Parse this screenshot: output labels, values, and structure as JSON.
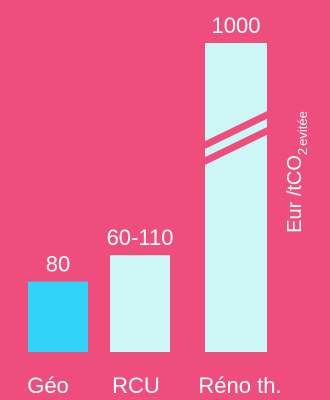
{
  "chart_data": {
    "type": "bar",
    "categories": [
      "Géo",
      "RCU",
      "Réno th."
    ],
    "values": [
      80,
      110,
      1000
    ],
    "data_labels": [
      "80",
      "60-110",
      "1000"
    ],
    "range_min": [
      null,
      60,
      null
    ],
    "axis_break_on": "Réno th.",
    "ylabel_main": "Eur /tCO",
    "ylabel_sub": "2",
    "ylabel_suffix": "evitée",
    "grid": false,
    "legend": "none",
    "colors": {
      "background": "#EF4D7C",
      "bar_highlight": "#31D4F7",
      "bar_default": "#CDF6F6",
      "text": "#FFFFFF"
    }
  }
}
